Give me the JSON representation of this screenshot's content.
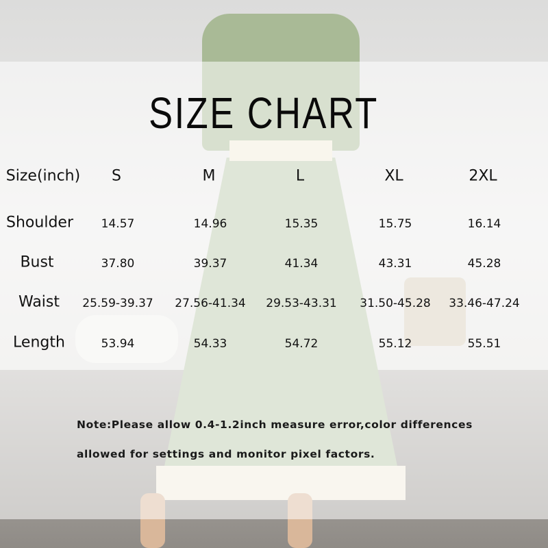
{
  "title": "SIZE CHART",
  "table": {
    "header": [
      "Size(inch)",
      "S",
      "M",
      "L",
      "XL",
      "2XL"
    ],
    "rows": [
      {
        "label": "Shoulder",
        "values": [
          "14.57",
          "14.96",
          "15.35",
          "15.75",
          "16.14"
        ]
      },
      {
        "label": "Bust",
        "values": [
          "37.80",
          "39.37",
          "41.34",
          "43.31",
          "45.28"
        ]
      },
      {
        "label": "Waist",
        "values": [
          "25.59-39.37",
          "27.56-41.34",
          "29.53-43.31",
          "31.50-45.28",
          "33.46-47.24"
        ]
      },
      {
        "label": "Length",
        "values": [
          "53.94",
          "54.33",
          "54.72",
          "55.12",
          "55.51"
        ]
      }
    ]
  },
  "note": {
    "line1": "Note:Please allow 0.4-1.2inch measure error,color differences",
    "line2": "allowed for settings and monitor pixel factors."
  },
  "colors": {
    "dress": "#b8c7a8",
    "pattern": "#f1ecdc"
  }
}
